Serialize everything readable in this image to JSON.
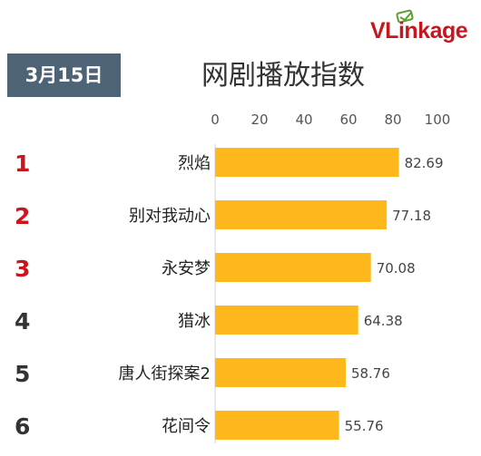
{
  "header": {
    "logo_text_primary": "VLink",
    "logo_text_suffix": "age",
    "date": "3月15日",
    "title": "网剧播放指数"
  },
  "colors": {
    "bar": "#ffb81c",
    "rank_top": "#c8161e",
    "rank_other": "#333333",
    "badge_bg": "#4f6377",
    "logo": "#c8161e"
  },
  "chart_data": {
    "type": "bar",
    "orientation": "horizontal",
    "title": "网剧播放指数",
    "xlim": [
      0,
      100
    ],
    "x_ticks": [
      0,
      20,
      40,
      60,
      80,
      100
    ],
    "grid": false,
    "ranks": [
      "1",
      "2",
      "3",
      "4",
      "5",
      "6"
    ],
    "categories": [
      "烈焰",
      "别对我动心",
      "永安梦",
      "猎冰",
      "唐人街探案2",
      "花间令"
    ],
    "values": [
      82.69,
      77.18,
      70.08,
      64.38,
      58.76,
      55.76
    ],
    "value_labels": [
      "82.69",
      "77.18",
      "70.08",
      "64.38",
      "58.76",
      "55.76"
    ]
  }
}
